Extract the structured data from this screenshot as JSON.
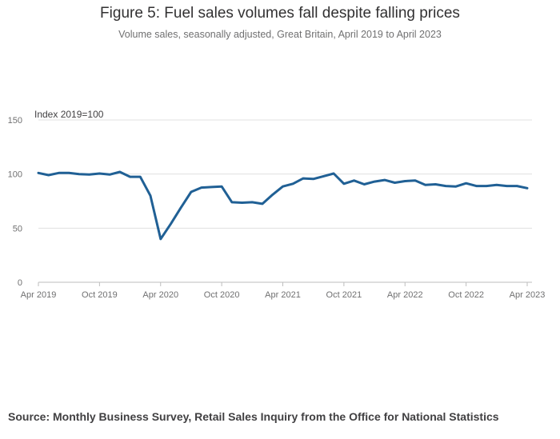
{
  "header": {
    "title": "Figure 5: Fuel sales volumes fall despite falling prices",
    "subtitle": "Volume sales, seasonally adjusted, Great Britain, April 2019 to April 2023"
  },
  "footer": {
    "source": "Source: Monthly Business Survey, Retail Sales Inquiry from the Office for National Statistics"
  },
  "colors": {
    "line": "#206095",
    "grid": "#e0e0e0",
    "axis": "#bebebe",
    "tick_text": "#707071"
  },
  "chart_data": {
    "type": "line",
    "ylabel": "Index 2019=100",
    "ylim": [
      0,
      150
    ],
    "yticks": [
      0,
      50,
      100,
      150
    ],
    "xtick_labels": [
      "Apr 2019",
      "Oct 2019",
      "Apr 2020",
      "Oct 2020",
      "Apr 2021",
      "Oct 2021",
      "Apr 2022",
      "Oct 2022",
      "Apr 2023"
    ],
    "grid": true,
    "x": [
      "Apr 2019",
      "May 2019",
      "Jun 2019",
      "Jul 2019",
      "Aug 2019",
      "Sep 2019",
      "Oct 2019",
      "Nov 2019",
      "Dec 2019",
      "Jan 2020",
      "Feb 2020",
      "Mar 2020",
      "Apr 2020",
      "May 2020",
      "Jun 2020",
      "Jul 2020",
      "Aug 2020",
      "Sep 2020",
      "Oct 2020",
      "Nov 2020",
      "Dec 2020",
      "Jan 2021",
      "Feb 2021",
      "Mar 2021",
      "Apr 2021",
      "May 2021",
      "Jun 2021",
      "Jul 2021",
      "Aug 2021",
      "Sep 2021",
      "Oct 2021",
      "Nov 2021",
      "Dec 2021",
      "Jan 2022",
      "Feb 2022",
      "Mar 2022",
      "Apr 2022",
      "May 2022",
      "Jun 2022",
      "Jul 2022",
      "Aug 2022",
      "Sep 2022",
      "Oct 2022",
      "Nov 2022",
      "Dec 2022",
      "Jan 2023",
      "Feb 2023",
      "Mar 2023",
      "Apr 2023"
    ],
    "series": [
      {
        "values": [
          101,
          99,
          101,
          101,
          100,
          99.5,
          100.5,
          99.5,
          102,
          97.5,
          97.5,
          80,
          40,
          54,
          69,
          83.5,
          87.5,
          88,
          88.5,
          74,
          73.5,
          74,
          72.5,
          81,
          88.5,
          91,
          96,
          95.5,
          98,
          100.5,
          91,
          94,
          90.5,
          93,
          94.5,
          92,
          93.5,
          94,
          90,
          90.5,
          89,
          88.5,
          91.5,
          89,
          89,
          90,
          89,
          89,
          87
        ]
      }
    ]
  }
}
